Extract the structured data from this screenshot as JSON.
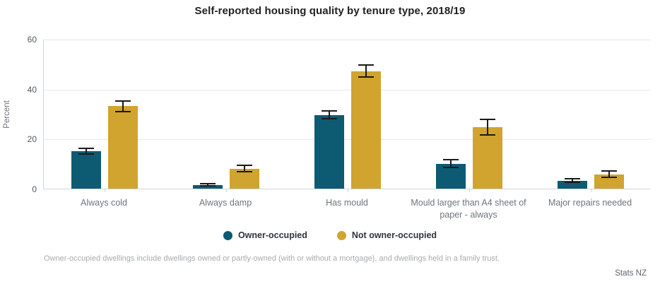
{
  "chart_data": {
    "type": "bar",
    "title": "Self-reported housing quality by tenure type, 2018/19",
    "ylabel": "Percent",
    "xlabel": "",
    "ylim": [
      0,
      60
    ],
    "yticks": [
      0,
      20,
      40,
      60
    ],
    "grid": true,
    "error_bars": true,
    "legend_position": "bottom",
    "categories": [
      "Always cold",
      "Always damp",
      "Has mould",
      "Mould larger than A4 sheet of paper - always",
      "Major repairs needed"
    ],
    "series": [
      {
        "name": "Owner-occupied",
        "color": "#0d5b72",
        "values": [
          15,
          1.5,
          29.5,
          10,
          3.2
        ],
        "errors": [
          1.3,
          0.7,
          1.8,
          1.8,
          1.0
        ]
      },
      {
        "name": "Not owner-occupied",
        "color": "#d0a42e",
        "values": [
          33,
          8,
          47,
          24.5,
          5.8
        ],
        "errors": [
          2.4,
          1.5,
          2.7,
          3.4,
          1.6
        ]
      }
    ]
  },
  "note": "Owner-occupied dwellings include dwellings owned or partly-owned (with or without a mortgage), and dwellings held in a family trust.",
  "attribution": "Stats NZ",
  "colors": {
    "grid": "#e4e8ef",
    "axis": "#ccd4e0",
    "tick_label": "#53585e",
    "category_label": "#6e757c",
    "error_bar": "#1a1a1a",
    "owner_occupied": "#0d5b72",
    "not_owner_occupied": "#d0a42e"
  }
}
